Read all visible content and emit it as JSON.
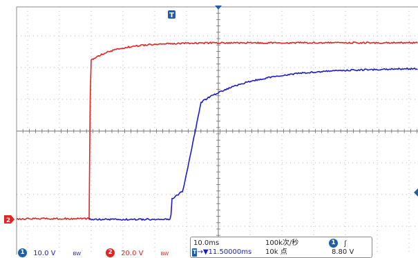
{
  "trigger_marker": "T",
  "ground_marker": "2",
  "channel_1": {
    "badge": "1",
    "scale": "10.0 V",
    "bw": "BW",
    "color": "#1a1acc"
  },
  "channel_2": {
    "badge": "2",
    "scale": "20.0 V",
    "bw": "BW",
    "color": "#e32222"
  },
  "timebase": {
    "scale": "10.0ms",
    "trigger_marker": "T",
    "trigger_arrow": "→▼",
    "delay": "11.50000ms",
    "sample_rate": "100k次/秒",
    "record_length": "10k 点"
  },
  "trigger": {
    "source_badge": "1",
    "slope_glyph": "ʃ",
    "level": "8.80 V"
  },
  "colors": {
    "grid": "#9a9a9a",
    "channel_1": "#1a1acc",
    "channel_2": "#e32222",
    "marker": "#1f5ea8"
  }
}
